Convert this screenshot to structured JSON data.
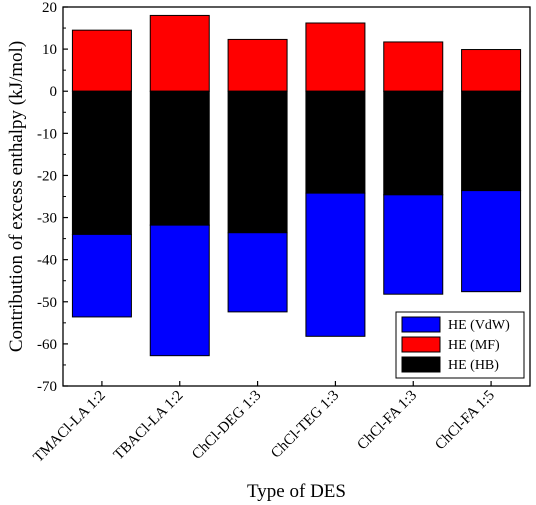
{
  "chart_data": {
    "type": "bar",
    "stacked": true,
    "title": "",
    "xlabel": "Type of DES",
    "ylabel": "Contribution of excess enthalpy (kJ/mol)",
    "ylim": [
      -70,
      20
    ],
    "yticks": [
      -70,
      -60,
      -50,
      -40,
      -30,
      -20,
      -10,
      0,
      10,
      20
    ],
    "grid": false,
    "legend_position": "bottom-right",
    "categories": [
      "TMACl-LA 1:2",
      "TBACl-LA 1:2",
      "ChCl-DEG 1:3",
      "ChCl-TEG 1:3",
      "ChCl-FA 1:3",
      "ChCl-FA 1:5"
    ],
    "series": [
      {
        "name": "HE (VdW)",
        "color": "#0000ff",
        "values": [
          -19.6,
          -31.0,
          -18.8,
          -34.0,
          -23.6,
          -24.0
        ]
      },
      {
        "name": "HE (MF)",
        "color": "#ff0000",
        "values": [
          14.5,
          18.0,
          12.3,
          16.2,
          11.7,
          9.9
        ]
      },
      {
        "name": "HE (HB)",
        "color": "#000000",
        "values": [
          -34.0,
          -31.8,
          -33.6,
          -24.2,
          -24.6,
          -23.6
        ]
      }
    ],
    "legend_order": [
      "HE (VdW)",
      "HE (MF)",
      "HE (HB)"
    ]
  }
}
